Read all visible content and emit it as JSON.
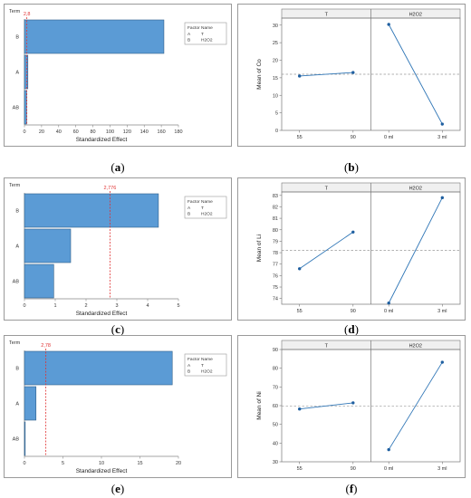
{
  "captions": [
    "a",
    "b",
    "c",
    "d",
    "e",
    "f"
  ],
  "chart_data": [
    {
      "id": "a",
      "type": "bar",
      "orientation": "horizontal",
      "categories": [
        "B",
        "A",
        "AB"
      ],
      "values": [
        163,
        4,
        2.5
      ],
      "ref_value": 2.8,
      "ref_label": "2,8",
      "xlim": [
        0,
        180
      ],
      "xticks": [
        "0",
        "20",
        "40",
        "60",
        "80",
        "100",
        "120",
        "140",
        "160",
        "180"
      ],
      "xlabel": "Standardized Effect",
      "ylabel": "Term",
      "legend": {
        "header": [
          "Factor",
          "Name"
        ],
        "rows": [
          [
            "A",
            "T"
          ],
          [
            "B",
            "H2O2"
          ]
        ]
      }
    },
    {
      "id": "b",
      "type": "line",
      "ylabel": "Mean of Co",
      "ylim": [
        0,
        32
      ],
      "yticks": [
        "0",
        "5",
        "10",
        "15",
        "20",
        "25",
        "30"
      ],
      "mean": 16.0,
      "panels": [
        {
          "title": "T",
          "categories": [
            "55",
            "90"
          ],
          "values": [
            15.5,
            16.5
          ]
        },
        {
          "title": "H2O2",
          "categories": [
            "0 ml",
            "3 ml"
          ],
          "values": [
            30.2,
            1.8
          ]
        }
      ]
    },
    {
      "id": "c",
      "type": "bar",
      "orientation": "horizontal",
      "categories": [
        "B",
        "A",
        "AB"
      ],
      "values": [
        4.35,
        1.5,
        0.95
      ],
      "ref_value": 2.776,
      "ref_label": "2,776",
      "xlim": [
        0,
        5
      ],
      "xticks": [
        "0",
        "1",
        "2",
        "3",
        "4",
        "5"
      ],
      "xlabel": "Standardized Effect",
      "ylabel": "Term",
      "legend": {
        "header": [
          "Factor",
          "Name"
        ],
        "rows": [
          [
            "A",
            "T"
          ],
          [
            "B",
            "H2O2"
          ]
        ]
      }
    },
    {
      "id": "d",
      "type": "line",
      "ylabel": "Mean of Li",
      "ylim": [
        73.5,
        83.3
      ],
      "yticks": [
        "74",
        "75",
        "76",
        "77",
        "78",
        "79",
        "80",
        "81",
        "82",
        "83"
      ],
      "mean": 78.2,
      "panels": [
        {
          "title": "T",
          "categories": [
            "55",
            "90"
          ],
          "values": [
            76.6,
            79.8
          ]
        },
        {
          "title": "H2O2",
          "categories": [
            "0 ml",
            "3 ml"
          ],
          "values": [
            73.6,
            82.8
          ]
        }
      ]
    },
    {
      "id": "e",
      "type": "bar",
      "orientation": "horizontal",
      "categories": [
        "B",
        "A",
        "AB"
      ],
      "values": [
        19.2,
        1.5,
        0.1
      ],
      "ref_value": 2.78,
      "ref_label": "2,78",
      "xlim": [
        0,
        20
      ],
      "xticks": [
        "0",
        "5",
        "10",
        "15",
        "20"
      ],
      "xlabel": "Standardized Effect",
      "ylabel": "Term",
      "legend": {
        "header": [
          "Factor",
          "Name"
        ],
        "rows": [
          [
            "A",
            "T"
          ],
          [
            "B",
            "H2O2"
          ]
        ]
      }
    },
    {
      "id": "f",
      "type": "line",
      "ylabel": "Mean of Ni",
      "ylim": [
        30,
        90
      ],
      "yticks": [
        "30",
        "40",
        "50",
        "60",
        "70",
        "80",
        "90"
      ],
      "mean": 59.8,
      "panels": [
        {
          "title": "T",
          "categories": [
            "55",
            "90"
          ],
          "values": [
            58.2,
            61.5
          ]
        },
        {
          "title": "H2O2",
          "categories": [
            "0 ml",
            "3 ml"
          ],
          "values": [
            36.5,
            83.2
          ]
        }
      ]
    }
  ]
}
